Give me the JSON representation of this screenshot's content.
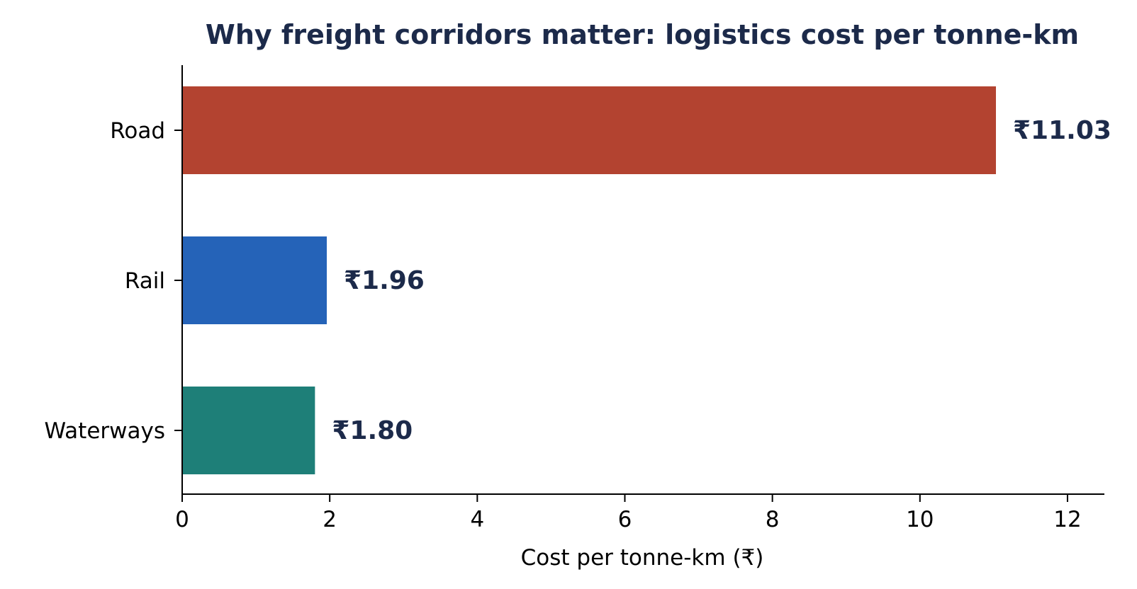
{
  "chart_data": {
    "type": "bar",
    "orientation": "horizontal",
    "title": "Why freight corridors matter: logistics cost per tonne-km",
    "xlabel": "Cost per tonne-km (₹)",
    "ylabel": "",
    "categories": [
      "Road",
      "Rail",
      "Waterways"
    ],
    "values": [
      11.03,
      1.96,
      1.8
    ],
    "value_labels": [
      "₹11.03",
      "₹1.96",
      "₹1.80"
    ],
    "bar_colors": [
      "#b34330",
      "#2563b8",
      "#1e7f78"
    ],
    "xlim": [
      0,
      12.5
    ],
    "xticks": [
      0,
      2,
      4,
      6,
      8,
      10,
      12
    ],
    "xtick_labels": [
      "0",
      "2",
      "4",
      "6",
      "8",
      "10",
      "12"
    ],
    "grid": false,
    "legend": "none",
    "title_color": "#1c2a4a",
    "value_label_color": "#1c2a4a"
  }
}
